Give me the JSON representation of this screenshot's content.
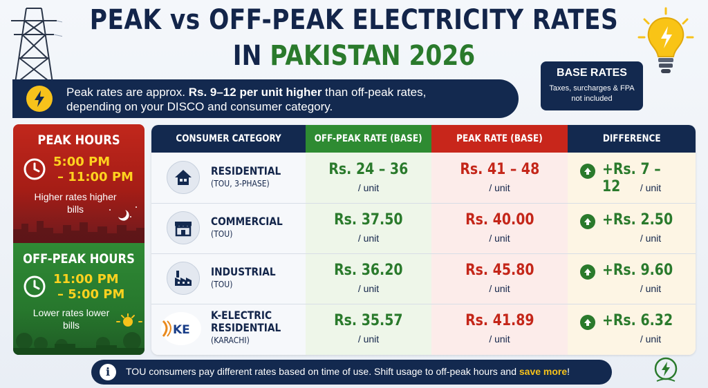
{
  "header": {
    "title_line1": "PEAK vs OFF-PEAK ELECTRICITY RATES",
    "title_line2_prefix": "IN ",
    "title_line2_highlight": "PAKISTAN 2026"
  },
  "banner": {
    "text_a": "Peak rates are approx. ",
    "text_b": "Rs. 9–12 per unit higher",
    "text_c": " than off-peak rates,",
    "text_d": "depending on your DISCO and consumer category."
  },
  "base_rates": {
    "title": "BASE RATES",
    "note": "Taxes, surcharges & FPA not included"
  },
  "peak_hours": {
    "title": "PEAK HOURS",
    "time_start": "5:00 PM",
    "time_end": "– 11:00 PM",
    "note": "Higher rates higher bills",
    "color": "#c1271c"
  },
  "off_peak_hours": {
    "title": "OFF-PEAK HOURS",
    "time_start": "11:00 PM",
    "time_end": "– 5:00 PM",
    "note": "Lower rates lower bills",
    "color": "#2f8a35"
  },
  "table": {
    "headers": {
      "category": "CONSUMER CATEGORY",
      "off_peak": "OFF-PEAK RATE (BASE)",
      "peak": "PEAK RATE (BASE)",
      "difference": "DIFFERENCE"
    },
    "unit_label": "/ unit",
    "rows": [
      {
        "icon": "house-icon",
        "name": "RESIDENTIAL",
        "sub": "(TOU, 3-PHASE)",
        "off_peak": "Rs. 24 – 36",
        "peak": "Rs. 41 – 48",
        "difference": "+Rs. 7 – 12"
      },
      {
        "icon": "shop-icon",
        "name": "COMMERCIAL",
        "sub": "(TOU)",
        "off_peak": "Rs. 37.50",
        "peak": "Rs. 40.00",
        "difference": "+Rs. 2.50"
      },
      {
        "icon": "factory-icon",
        "name": "INDUSTRIAL",
        "sub": "(TOU)",
        "off_peak": "Rs. 36.20",
        "peak": "Rs. 45.80",
        "difference": "+Rs. 9.60"
      },
      {
        "icon": "ke-logo-icon",
        "logo_text": "KE",
        "name_l1": "K-ELECTRIC",
        "name_l2": "RESIDENTIAL",
        "sub": "(KARACHI)",
        "off_peak": "Rs. 35.57",
        "peak": "Rs. 41.89",
        "difference": "+Rs. 6.32"
      }
    ]
  },
  "footer": {
    "text": "TOU consumers pay different rates based on time of use. Shift usage to off-peak hours and ",
    "highlight": "save more",
    "end": "!"
  },
  "colors": {
    "navy": "#13294f",
    "green": "#2a7a2c",
    "red": "#c42619",
    "yellow": "#f7c21b"
  }
}
